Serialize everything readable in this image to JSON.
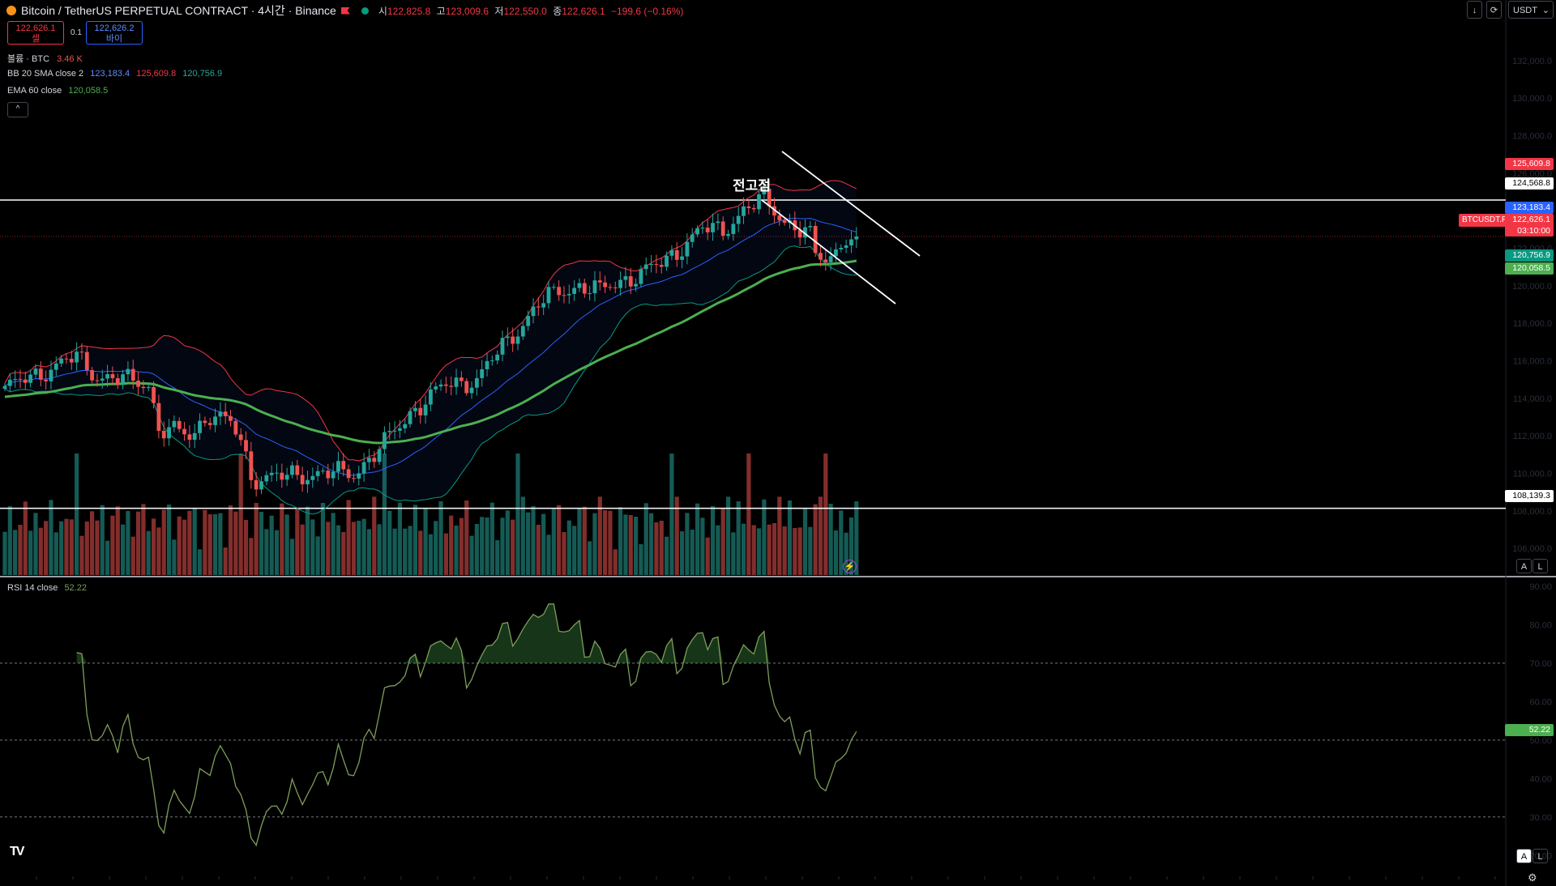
{
  "header": {
    "title": "Bitcoin / TetherUS PERPETUAL CONTRACT · 4시간 · Binance",
    "ohlc": [
      {
        "k": "시",
        "v": "122,825.8"
      },
      {
        "k": "고",
        "v": "123,009.6"
      },
      {
        "k": "저",
        "v": "122,550.0"
      },
      {
        "k": "종",
        "v": "122,626.1"
      },
      {
        "k": "",
        "v": "−199.6 (−0.16%)"
      }
    ]
  },
  "trade": {
    "sell_price": "122,626.1",
    "sell_label": "셀",
    "spread": "0.1",
    "buy_price": "122,626.2",
    "buy_label": "바이"
  },
  "indicators": {
    "volume": {
      "name": "볼륨 · BTC",
      "value": "3.46 K"
    },
    "bb": {
      "name": "BB 20 SMA close 2",
      "basis": "123,183.4",
      "upper": "125,609.8",
      "lower": "120,756.9"
    },
    "ema": {
      "name": "EMA 60 close",
      "value": "120,058.5"
    },
    "rsi": {
      "name": "RSI 14 close",
      "value": "52.22"
    }
  },
  "toolbar": {
    "currency": "USDT",
    "collapse": "^",
    "auto": "A",
    "log": "L"
  },
  "annotation": "전고점",
  "price_labels": {
    "bb_upper": "125,609.8",
    "level_high": "124,568.8",
    "bb_basis": "123,183.4",
    "symbol": "BTCUSDT.P",
    "last": "122,626.1",
    "countdown": "03:10:00",
    "bb_lower": "120,756.9",
    "ema": "120,058.5",
    "level_low": "108,139.3",
    "rsi": "52.22"
  },
  "colors": {
    "up": "#26a69a",
    "down": "#ef5350",
    "bb_upper": "#f23645",
    "bb_basis": "#2962ff",
    "bb_lower": "#089981",
    "ema": "#4caf50",
    "rsi": "#7e9e5a",
    "background": "#000000"
  },
  "chart_data": [
    {
      "type": "candlestick",
      "xlabel": "",
      "ylabel": "",
      "ylim": [
        104500,
        133500
      ],
      "horizontal_levels": [
        124568.8,
        108139.3
      ],
      "candles": [],
      "bb_upper": [],
      "bb_basis": [],
      "bb_lower": [],
      "ema60": [],
      "volume": []
    },
    {
      "type": "line",
      "name": "RSI 14 close",
      "ylim": [
        15,
        90
      ],
      "levels": [
        70,
        50,
        30
      ],
      "values": []
    }
  ]
}
